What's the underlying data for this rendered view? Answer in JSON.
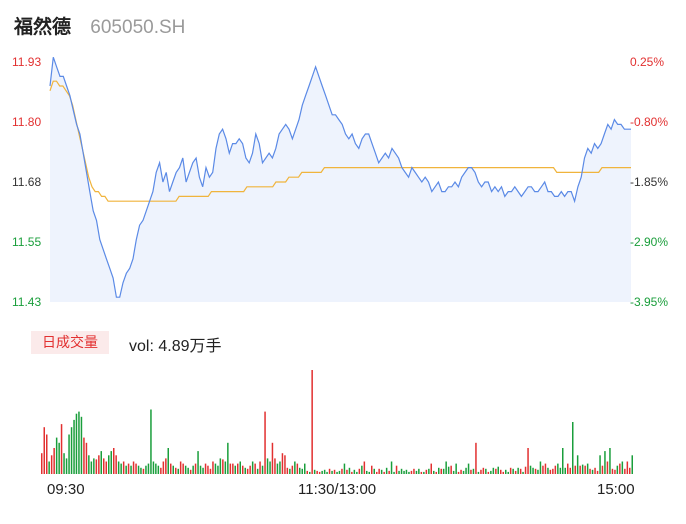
{
  "header": {
    "name": "福然德",
    "code": "605050.SH"
  },
  "volume_panel": {
    "badge": "日成交量",
    "text": "vol: 4.89万手"
  },
  "colors": {
    "price_line": "#5b8ae6",
    "avg_line": "#f0b43c",
    "area_fill": "#eef3fd",
    "up": "#e23030",
    "down": "#1a9e3b",
    "axis_text": "#333333"
  },
  "chart_data": [
    {
      "type": "line",
      "title": "",
      "y_left_ticks": [
        "11.93",
        "11.80",
        "11.68",
        "11.55",
        "11.43"
      ],
      "y_right_ticks": [
        "0.25%",
        "-0.80%",
        "-1.85%",
        "-2.90%",
        "-3.95%"
      ],
      "ylim": [
        11.43,
        11.93
      ],
      "x_ticks": [
        "09:30",
        "11:30/13:00",
        "15:00"
      ],
      "series": [
        {
          "values": [
            11.88,
            11.94,
            11.92,
            11.9,
            11.9,
            11.88,
            11.86,
            11.83,
            11.8,
            11.78,
            11.74,
            11.7,
            11.66,
            11.62,
            11.6,
            11.56,
            11.54,
            11.52,
            11.5,
            11.48,
            11.44,
            11.44,
            11.47,
            11.49,
            11.5,
            11.52,
            11.56,
            11.59,
            11.6,
            11.62,
            11.64,
            11.66,
            11.7,
            11.72,
            11.68,
            11.7,
            11.66,
            11.68,
            11.7,
            11.71,
            11.73,
            11.68,
            11.7,
            11.72,
            11.73,
            11.69,
            11.67,
            11.71,
            11.69,
            11.7,
            11.75,
            11.78,
            11.79,
            11.77,
            11.74,
            11.76,
            11.76,
            11.77,
            11.76,
            11.73,
            11.72,
            11.74,
            11.78,
            11.76,
            11.72,
            11.73,
            11.74,
            11.73,
            11.75,
            11.78,
            11.79,
            11.8,
            11.79,
            11.77,
            11.79,
            11.81,
            11.84,
            11.86,
            11.88,
            11.9,
            11.92,
            11.9,
            11.88,
            11.86,
            11.84,
            11.82,
            11.82,
            11.81,
            11.8,
            11.78,
            11.77,
            11.78,
            11.76,
            11.75,
            11.77,
            11.78,
            11.78,
            11.76,
            11.74,
            11.72,
            11.73,
            11.74,
            11.73,
            11.75,
            11.74,
            11.73,
            11.71,
            11.7,
            11.69,
            11.71,
            11.7,
            11.69,
            11.68,
            11.69,
            11.68,
            11.66,
            11.67,
            11.68,
            11.66,
            11.66,
            11.67,
            11.67,
            11.68,
            11.67,
            11.69,
            11.7,
            11.71,
            11.71,
            11.7,
            11.68,
            11.67,
            11.68,
            11.68,
            11.66,
            11.67,
            11.66,
            11.67,
            11.65,
            11.66,
            11.66,
            11.67,
            11.66,
            11.65,
            11.66,
            11.67,
            11.67,
            11.66,
            11.66,
            11.67,
            11.68,
            11.66,
            11.66,
            11.65,
            11.65,
            11.66,
            11.65,
            11.66,
            11.66,
            11.64,
            11.67,
            11.69,
            11.73,
            11.75,
            11.74,
            11.76,
            11.75,
            11.76,
            11.78,
            11.8,
            11.79,
            11.81,
            11.8,
            11.8,
            11.79,
            11.79,
            11.79
          ],
          "color": "#5b8ae6"
        },
        {
          "values": [
            11.87,
            11.89,
            11.89,
            11.88,
            11.88,
            11.87,
            11.86,
            11.84,
            11.81,
            11.78,
            11.75,
            11.72,
            11.69,
            11.67,
            11.66,
            11.66,
            11.65,
            11.65,
            11.64,
            11.64,
            11.64,
            11.64,
            11.64,
            11.64,
            11.64,
            11.64,
            11.64,
            11.64,
            11.64,
            11.64,
            11.64,
            11.64,
            11.64,
            11.64,
            11.64,
            11.64,
            11.64,
            11.64,
            11.64,
            11.64,
            11.65,
            11.65,
            11.65,
            11.65,
            11.65,
            11.65,
            11.65,
            11.65,
            11.65,
            11.65,
            11.66,
            11.66,
            11.66,
            11.66,
            11.66,
            11.66,
            11.66,
            11.66,
            11.66,
            11.66,
            11.66,
            11.67,
            11.67,
            11.67,
            11.67,
            11.67,
            11.67,
            11.67,
            11.67,
            11.67,
            11.68,
            11.68,
            11.68,
            11.68,
            11.69,
            11.69,
            11.69,
            11.69,
            11.7,
            11.7,
            11.7,
            11.7,
            11.7,
            11.7,
            11.7,
            11.71,
            11.71,
            11.71,
            11.71,
            11.71,
            11.71,
            11.71,
            11.71,
            11.71,
            11.71,
            11.71,
            11.71,
            11.71,
            11.71,
            11.71,
            11.71,
            11.71,
            11.71,
            11.71,
            11.71,
            11.71,
            11.71,
            11.71,
            11.71,
            11.71,
            11.71,
            11.71,
            11.71,
            11.71,
            11.71,
            11.71,
            11.71,
            11.71,
            11.71,
            11.71,
            11.71,
            11.71,
            11.71,
            11.71,
            11.71,
            11.71,
            11.71,
            11.71,
            11.71,
            11.71,
            11.71,
            11.71,
            11.71,
            11.71,
            11.71,
            11.71,
            11.71,
            11.71,
            11.71,
            11.71,
            11.71,
            11.71,
            11.71,
            11.71,
            11.71,
            11.71,
            11.71,
            11.71,
            11.71,
            11.71,
            11.71,
            11.71,
            11.71,
            11.71,
            11.71,
            11.71,
            11.71,
            11.7,
            11.7,
            11.7,
            11.7,
            11.7,
            11.7,
            11.7,
            11.7,
            11.7,
            11.7,
            11.7,
            11.7,
            11.7,
            11.7,
            11.71,
            11.71,
            11.71,
            11.71,
            11.71,
            11.71,
            11.71,
            11.71,
            11.71,
            11.71
          ],
          "color": "#f0b43c"
        }
      ]
    },
    {
      "type": "bar",
      "title": "",
      "unit": "万手",
      "total": "4.89",
      "values": [
        0.2,
        0.45,
        0.38,
        0.12,
        0.18,
        0.25,
        0.35,
        0.3,
        0.48,
        0.2,
        0.15,
        0.38,
        0.45,
        0.52,
        0.58,
        0.6,
        0.55,
        0.35,
        0.3,
        0.18,
        0.12,
        0.15,
        0.14,
        0.18,
        0.22,
        0.15,
        0.12,
        0.18,
        0.22,
        0.25,
        0.18,
        0.12,
        0.1,
        0.12,
        0.08,
        0.1,
        0.08,
        0.12,
        0.1,
        0.08,
        0.06,
        0.05,
        0.08,
        0.1,
        0.62,
        0.12,
        0.1,
        0.08,
        0.06,
        0.12,
        0.15,
        0.25,
        0.1,
        0.08,
        0.06,
        0.05,
        0.12,
        0.1,
        0.08,
        0.06,
        0.04,
        0.08,
        0.1,
        0.22,
        0.08,
        0.06,
        0.1,
        0.08,
        0.05,
        0.12,
        0.1,
        0.08,
        0.15,
        0.14,
        0.12,
        0.3,
        0.1,
        0.1,
        0.08,
        0.1,
        0.12,
        0.08,
        0.06,
        0.05,
        0.08,
        0.12,
        0.1,
        0.05,
        0.12,
        0.08,
        0.6,
        0.15,
        0.12,
        0.3,
        0.15,
        0.1,
        0.12,
        0.2,
        0.18,
        0.06,
        0.05,
        0.08,
        0.12,
        0.1,
        0.06,
        0.05,
        0.1,
        0.03,
        0.02,
        1.0,
        0.04,
        0.03,
        0.02,
        0.03,
        0.04,
        0.02,
        0.05,
        0.03,
        0.04,
        0.02,
        0.03,
        0.05,
        0.1,
        0.04,
        0.06,
        0.02,
        0.04,
        0.02,
        0.05,
        0.08,
        0.12,
        0.03,
        0.02,
        0.08,
        0.05,
        0.02,
        0.05,
        0.04,
        0.02,
        0.06,
        0.03,
        0.12,
        0.02,
        0.08,
        0.03,
        0.05,
        0.03,
        0.04,
        0.02,
        0.03,
        0.05,
        0.03,
        0.05,
        0.02,
        0.02,
        0.04,
        0.05,
        0.1,
        0.03,
        0.02,
        0.06,
        0.05,
        0.05,
        0.12,
        0.07,
        0.08,
        0.03,
        0.1,
        0.02,
        0.04,
        0.03,
        0.06,
        0.1,
        0.04,
        0.05,
        0.3,
        0.02,
        0.04,
        0.06,
        0.05,
        0.02,
        0.03,
        0.06,
        0.05,
        0.07,
        0.04,
        0.02,
        0.04,
        0.02,
        0.06,
        0.05,
        0.03,
        0.06,
        0.05,
        0.02,
        0.07,
        0.25,
        0.08,
        0.06,
        0.05,
        0.04,
        0.12,
        0.08,
        0.1,
        0.06,
        0.04,
        0.05,
        0.08,
        0.1,
        0.06,
        0.25,
        0.06,
        0.1,
        0.06,
        0.5,
        0.08,
        0.18,
        0.08,
        0.09,
        0.08,
        0.1,
        0.05,
        0.04,
        0.06,
        0.03,
        0.18,
        0.08,
        0.22,
        0.12,
        0.25,
        0.05,
        0.04,
        0.08,
        0.1,
        0.12,
        0.05,
        0.12,
        0.06,
        0.18
      ],
      "directions": "rrrgrrggrggggggggrrgggrrgrrggrrggrgrgrrggrggggggrrrgrgrgrrggrgrgggrrrrgggrggrrgrgrgrrgrgrgrggrrggrrrgrgrgggrgrgrrgggrgrggrgrgrggrgrggrgrrgrgrggrgggggrrggrgrgrgrgrgggrggrrgggrgrgrrgrggrgrrggrgrgrgrrggrggrrgrrrggggrrgrgrgrgrgrrgrgrgrrgrgrrrgrgr"
    }
  ]
}
